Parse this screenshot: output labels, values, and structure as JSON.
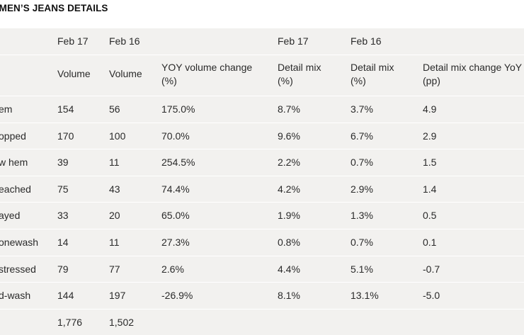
{
  "title": "OMEN’S JEANS DETAILS",
  "header_row1": [
    "",
    "Feb 17",
    "Feb 16",
    "",
    "Feb 17",
    "Feb 16",
    ""
  ],
  "header_row2": [
    "",
    "Volume",
    "Volume",
    "YOY volume change\n(%)",
    "Detail mix\n(%)",
    "Detail mix\n(%)",
    "Detail mix change YoY\n(pp)"
  ],
  "rows": [
    [
      "em",
      "154",
      "56",
      "175.0%",
      "8.7%",
      "3.7%",
      "4.9"
    ],
    [
      "opped",
      "170",
      "100",
      "70.0%",
      "9.6%",
      "6.7%",
      "2.9"
    ],
    [
      "w hem",
      "39",
      "11",
      "254.5%",
      "2.2%",
      "0.7%",
      "1.5"
    ],
    [
      "eached",
      "75",
      "43",
      "74.4%",
      "4.2%",
      "2.9%",
      "1.4"
    ],
    [
      "ayed",
      "33",
      "20",
      "65.0%",
      "1.9%",
      "1.3%",
      "0.5"
    ],
    [
      "onewash",
      "14",
      "11",
      "27.3%",
      "0.8%",
      "0.7%",
      "0.1"
    ],
    [
      "stressed",
      "79",
      "77",
      "2.6%",
      "4.4%",
      "5.1%",
      "-0.7"
    ],
    [
      "d-wash",
      "144",
      "197",
      "-26.9%",
      "8.1%",
      "13.1%",
      "-5.0"
    ],
    [
      "",
      "1,776",
      "1,502",
      "",
      "",
      "",
      ""
    ]
  ]
}
